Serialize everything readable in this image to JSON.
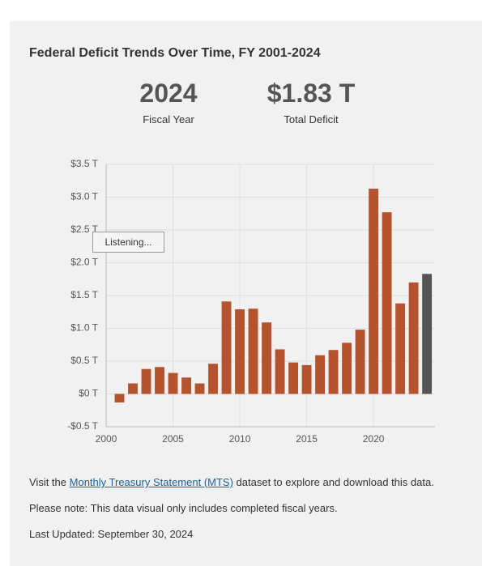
{
  "header": {
    "title": "Federal Deficit Trends Over Time, FY 2001-2024",
    "year": "2024",
    "year_label": "Fiscal Year",
    "amount": "$1.83 T",
    "amount_label": "Total Deficit"
  },
  "chart_data": {
    "type": "bar",
    "x": [
      2001,
      2002,
      2003,
      2004,
      2005,
      2006,
      2007,
      2008,
      2009,
      2010,
      2011,
      2012,
      2013,
      2014,
      2015,
      2016,
      2017,
      2018,
      2019,
      2020,
      2021,
      2022,
      2023,
      2024
    ],
    "values": [
      -0.13,
      0.16,
      0.38,
      0.41,
      0.32,
      0.25,
      0.16,
      0.46,
      1.41,
      1.29,
      1.3,
      1.09,
      0.68,
      0.48,
      0.44,
      0.59,
      0.67,
      0.78,
      0.98,
      3.13,
      2.77,
      1.38,
      1.7,
      1.83
    ],
    "color": "#b5532e",
    "highlight_color": "#555555",
    "xlim": [
      2000,
      2024.6
    ],
    "xticks": [
      2000,
      2005,
      2010,
      2015,
      2020
    ],
    "ylim": [
      -0.5,
      3.5
    ],
    "yticks": [
      {
        "value": -0.5,
        "label": "-$0.5 T"
      },
      {
        "value": 0,
        "label": "$0 T"
      },
      {
        "value": 0.5,
        "label": "$0.5 T"
      },
      {
        "value": 1,
        "label": "$1.0 T"
      },
      {
        "value": 1.5,
        "label": "$1.5 T"
      },
      {
        "value": 2,
        "label": "$2.0 T"
      },
      {
        "value": 2.5,
        "label": "$2.5 T"
      },
      {
        "value": 3,
        "label": "$3.0 T"
      },
      {
        "value": 3.5,
        "label": "$3.5 T"
      }
    ],
    "grid": true
  },
  "tooltip": "Listening...",
  "footer": {
    "visit_prefix": "Visit the",
    "link": "Monthly Treasury Statement (MTS)",
    "visit_suffix": "dataset to explore and download this data.",
    "note": "Please note: This data visual only includes completed fiscal years.",
    "updated": "Last Updated: September 30, 2024"
  }
}
